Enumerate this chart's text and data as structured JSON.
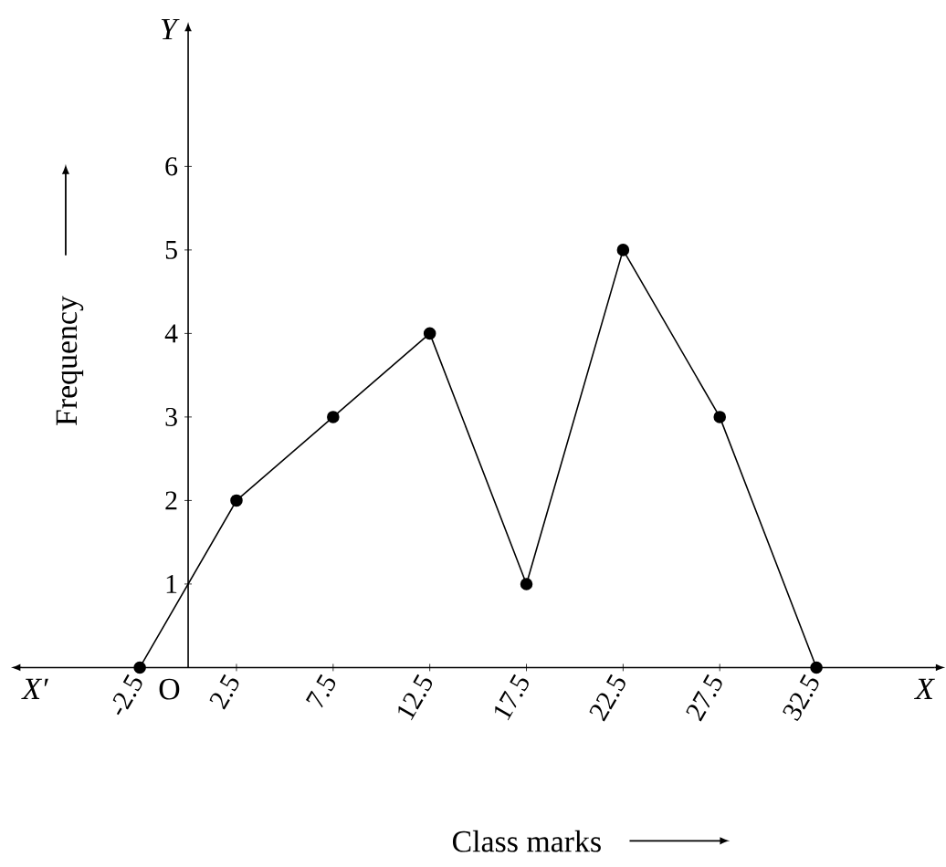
{
  "chart_data": {
    "type": "line",
    "xlabel": "Class marks",
    "ylabel": "Frequency",
    "x": [
      -2.5,
      2.5,
      7.5,
      12.5,
      17.5,
      22.5,
      27.5,
      32.5
    ],
    "series": [
      {
        "color": "#000000",
        "values": [
          0,
          2,
          3,
          4,
          1,
          5,
          3,
          0
        ]
      }
    ],
    "xlim": [
      -8.6,
      38.6
    ],
    "ylim": [
      0,
      7.6
    ],
    "xticks": [
      -2.5,
      2.5,
      7.5,
      12.5,
      17.5,
      22.5,
      27.5,
      32.5
    ],
    "yticks": [
      1,
      2,
      3,
      4,
      5,
      6
    ],
    "marker": "circle",
    "line_style": "solid",
    "annotations": [
      "X′",
      "X",
      "Y",
      "O"
    ]
  }
}
